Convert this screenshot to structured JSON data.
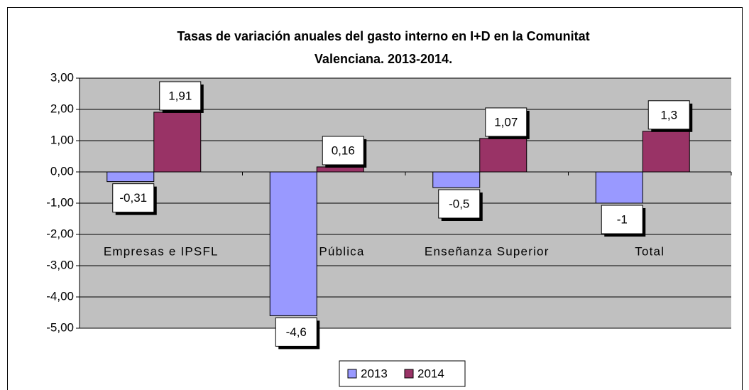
{
  "chart_data": {
    "type": "bar",
    "title": [
      "Tasas de variación anuales del gasto interno en I+D en la Comunitat",
      "Valenciana. 2013-2014."
    ],
    "categories": [
      "Empresas e IPSFL",
      "Adm. Pública",
      "Enseñanza Superior",
      "Total"
    ],
    "series": [
      {
        "name": "2013",
        "color": "#9999ff",
        "values": [
          -0.31,
          -4.6,
          -0.5,
          -1
        ],
        "value_labels": [
          "-0,31",
          "-4,6",
          "-0,5",
          "-1"
        ]
      },
      {
        "name": "2014",
        "color": "#993366",
        "values": [
          1.91,
          0.16,
          1.07,
          1.3
        ],
        "value_labels": [
          "1,91",
          "0,16",
          "1,07",
          "1,3"
        ]
      }
    ],
    "ylim": [
      -5,
      3
    ],
    "yticks": [
      {
        "value": -5,
        "label": "-5,00"
      },
      {
        "value": -4,
        "label": "-4,00"
      },
      {
        "value": -3,
        "label": "-3,00"
      },
      {
        "value": -2,
        "label": "-2,00"
      },
      {
        "value": -1,
        "label": "-1,00"
      },
      {
        "value": 0,
        "label": "0,00"
      },
      {
        "value": 1,
        "label": "1,00"
      },
      {
        "value": 2,
        "label": "2,00"
      },
      {
        "value": 3,
        "label": "3,00"
      }
    ],
    "grid": true,
    "background": "#c0c0c0",
    "legend": "bottom"
  }
}
